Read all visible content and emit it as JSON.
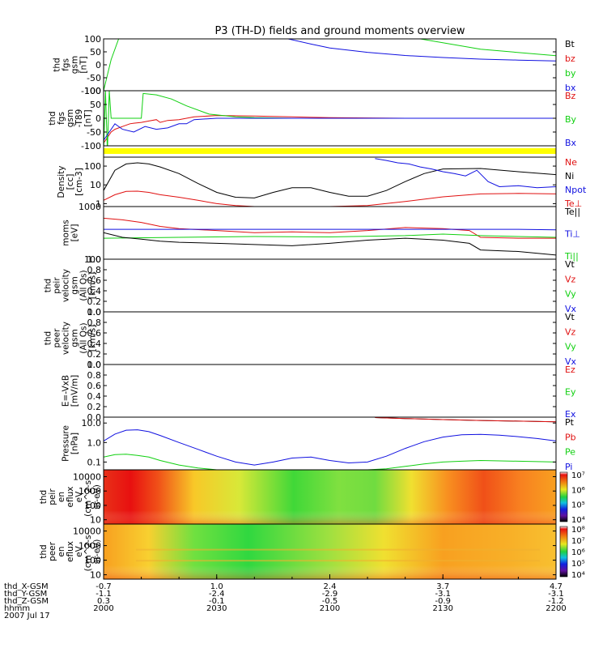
{
  "title": "P3 (TH-D) fields and ground moments overview",
  "chart_data": {
    "type": "line",
    "time_axis": {
      "rows": [
        {
          "label": "thd_X-GSM",
          "values": [
            "-0.7",
            "1.0",
            "2.4",
            "3.7",
            "4.7"
          ]
        },
        {
          "label": "thd_Y-GSM",
          "values": [
            "-1.1",
            "-2.4",
            "-2.9",
            "-3.1",
            "-3.1"
          ]
        },
        {
          "label": "thd_Z-GSM",
          "values": [
            "0.3",
            "-0.1",
            "-0.5",
            "-0.9",
            "-1.2"
          ]
        },
        {
          "label": "hhmm",
          "values": [
            "2000",
            "2030",
            "2100",
            "2130",
            "2200"
          ]
        }
      ],
      "date": "2007 Jul 17",
      "range_minutes": [
        0,
        120
      ]
    },
    "panels": [
      {
        "id": "fgs",
        "ylabel_lines": [
          "thd",
          "fgs",
          "gsm",
          "[nT]"
        ],
        "ylim": [
          -100,
          100
        ],
        "tick_labels": [
          "-100",
          "-50",
          "0",
          "50",
          "100"
        ],
        "legend": [
          {
            "label": "Bt",
            "color": "#000000"
          },
          {
            "label": "bz",
            "color": "#e01010"
          },
          {
            "label": "by",
            "color": "#10d010"
          },
          {
            "label": "bx",
            "color": "#1010e0"
          }
        ],
        "series": [
          {
            "name": "by",
            "t": [
              0,
              2,
              4,
              5,
              6,
              8,
              12,
              20,
              30,
              40,
              60,
              80,
              100,
              120
            ],
            "v": [
              -100,
              20,
              100,
              110,
              130,
              150,
              200,
              400,
              300,
              250,
              170,
              110,
              60,
              35
            ]
          },
          {
            "name": "bx",
            "t": [
              0,
              20,
              40,
              48,
              55,
              60,
              70,
              80,
              90,
              100,
              110,
              120
            ],
            "v": [
              400,
              250,
              150,
              103,
              80,
              65,
              48,
              36,
              28,
              22,
              18,
              15
            ]
          }
        ]
      },
      {
        "id": "fgs_t89",
        "ylabel_lines": [
          "thd",
          "fgs",
          "gsm",
          "-T89",
          "[nT]"
        ],
        "ylim": [
          -100,
          100
        ],
        "tick_labels": [
          "-100",
          "-50",
          "0",
          "50",
          "100"
        ],
        "legend": [
          {
            "label": "Bz",
            "color": "#e01010"
          },
          {
            "label": "By",
            "color": "#10d010"
          },
          {
            "label": "Bx",
            "color": "#1010e0"
          }
        ],
        "series": [
          {
            "name": "Bz",
            "t": [
              0,
              1,
              2,
              3,
              5,
              7,
              8,
              10,
              12,
              14,
              15,
              17,
              20,
              24,
              30,
              40,
              50,
              60,
              80,
              100,
              120
            ],
            "v": [
              -90,
              -70,
              -50,
              -40,
              -30,
              -20,
              -18,
              -15,
              -10,
              -5,
              -15,
              -8,
              -5,
              5,
              10,
              8,
              5,
              2,
              0,
              0,
              0
            ]
          },
          {
            "name": "By",
            "t": [
              0,
              0.5,
              1,
              1.5,
              2,
              10,
              10.5,
              14,
              18,
              22,
              28,
              35,
              40,
              50,
              60,
              80,
              100,
              120
            ],
            "v": [
              -120,
              100,
              -120,
              100,
              0,
              0,
              90,
              85,
              70,
              45,
              15,
              5,
              2,
              0,
              0,
              0,
              0,
              0
            ]
          },
          {
            "name": "Bx",
            "t": [
              0,
              3,
              5,
              8,
              11,
              14,
              17,
              20,
              22,
              24,
              30,
              40,
              60,
              80,
              100,
              120
            ],
            "v": [
              -80,
              -20,
              -40,
              -50,
              -30,
              -40,
              -35,
              -20,
              -20,
              -5,
              0,
              0,
              0,
              0,
              0,
              0
            ]
          }
        ]
      },
      {
        "id": "bar",
        "ylabel_lines": [],
        "color": "#ffff00"
      },
      {
        "id": "density",
        "ylabel_lines": [
          "Density",
          "[cc]",
          "[cm-3]"
        ],
        "ylim_log": [
          0.7,
          300
        ],
        "tick_labels": [
          "1",
          "10",
          "100"
        ],
        "tick_values": [
          1,
          10,
          100
        ],
        "legend": [
          {
            "label": "Ne",
            "color": "#e01010"
          },
          {
            "label": "Ni",
            "color": "#000000"
          },
          {
            "label": "Npot",
            "color": "#1010e0"
          },
          {
            "label": "Te⊥",
            "color": "#e01010"
          }
        ],
        "series": [
          {
            "name": "Ni",
            "t": [
              0,
              3,
              6,
              9,
              12,
              15,
              20,
              25,
              30,
              35,
              40,
              45,
              50,
              55,
              60,
              65,
              70,
              75,
              80,
              85,
              90,
              100,
              110,
              120
            ],
            "v": [
              5,
              60,
              130,
              150,
              130,
              90,
              40,
              12,
              4,
              2.2,
              2,
              4,
              7,
              7,
              4,
              2.5,
              2.5,
              5,
              15,
              40,
              70,
              75,
              50,
              35
            ]
          },
          {
            "name": "Ne",
            "t": [
              0,
              3,
              6,
              9,
              12,
              15,
              20,
              25,
              30,
              35,
              40,
              50,
              60,
              70,
              80,
              90,
              100,
              110,
              120
            ],
            "v": [
              1.5,
              3,
              4.5,
              4.6,
              4,
              3,
              2.2,
              1.5,
              1,
              0.8,
              0.7,
              0.7,
              0.7,
              0.8,
              1.3,
              2.3,
              3.3,
              3.5,
              3.3
            ]
          },
          {
            "name": "Npot",
            "t": [
              72,
              75,
              78,
              81,
              84,
              87,
              90,
              93,
              96,
              99,
              102,
              105,
              110,
              115,
              120
            ],
            "v": [
              250,
              200,
              150,
              130,
              90,
              70,
              50,
              40,
              30,
              60,
              15,
              8,
              9,
              7,
              8
            ]
          }
        ]
      },
      {
        "id": "moms",
        "ylabel_lines": [
          "moms",
          "[eV]"
        ],
        "ylim_log": [
          100,
          1000
        ],
        "tick_labels": [
          "100",
          "1000"
        ],
        "tick_values": [
          100,
          1000
        ],
        "legend": [
          {
            "label": "Te||",
            "color": "#000000"
          },
          {
            "label": "Ti⊥",
            "color": "#1010e0"
          },
          {
            "label": "Ti||",
            "color": "#10d010"
          }
        ],
        "series": [
          {
            "name": "Te",
            "t": [
              0,
              5,
              10,
              15,
              20,
              30,
              40,
              50,
              60,
              70,
              80,
              90,
              97,
              100,
              110,
              120
            ],
            "v": [
              600,
              560,
              500,
              420,
              380,
              350,
              320,
              330,
              320,
              350,
              400,
              380,
              350,
              260,
              250,
              250
            ]
          },
          {
            "name": "Ti⊥",
            "t": [
              0,
              20,
              40,
              60,
              80,
              90,
              100,
              110,
              120
            ],
            "v": [
              370,
              370,
              370,
              370,
              370,
              370,
              370,
              370,
              360
            ]
          },
          {
            "name": "Ti||",
            "t": [
              0,
              20,
              40,
              60,
              80,
              90,
              100,
              110,
              120
            ],
            "v": [
              250,
              260,
              270,
              265,
              280,
              300,
              280,
              270,
              260
            ]
          },
          {
            "name": "Ni",
            "t": [
              0,
              5,
              10,
              15,
              20,
              30,
              40,
              50,
              60,
              70,
              80,
              90,
              97,
              100,
              110,
              120
            ],
            "v": [
              320,
              260,
              240,
              220,
              210,
              200,
              190,
              180,
              200,
              230,
              250,
              230,
              200,
              150,
              140,
              120
            ]
          }
        ]
      },
      {
        "id": "peir_vel",
        "ylabel_lines": [
          "thd",
          "peir",
          "velocity",
          "gsm",
          "(All Qs)",
          "[km/s]"
        ],
        "ylim": [
          0,
          1
        ],
        "tick_labels": [
          "0.0",
          "0.2",
          "0.4",
          "0.6",
          "0.8",
          "1.0"
        ],
        "legend": [
          {
            "label": "Vt",
            "color": "#000000"
          },
          {
            "label": "Vz",
            "color": "#e01010"
          },
          {
            "label": "Vy",
            "color": "#10d010"
          },
          {
            "label": "Vx",
            "color": "#1010e0"
          }
        ],
        "series": []
      },
      {
        "id": "peer_vel",
        "ylabel_lines": [
          "thd",
          "peer",
          "velocity",
          "gsm",
          "(All Qs)",
          "[km/s]"
        ],
        "ylim": [
          0,
          1
        ],
        "tick_labels": [
          "0.0",
          "0.2",
          "0.4",
          "0.6",
          "0.8",
          "1.0"
        ],
        "legend": [
          {
            "label": "Vt",
            "color": "#000000"
          },
          {
            "label": "Vz",
            "color": "#e01010"
          },
          {
            "label": "Vy",
            "color": "#10d010"
          },
          {
            "label": "Vx",
            "color": "#1010e0"
          }
        ],
        "series": []
      },
      {
        "id": "efield",
        "ylabel_lines": [
          "E=-VxB",
          "[mV/m]"
        ],
        "ylim": [
          0,
          1
        ],
        "tick_labels": [
          "0.0",
          "0.2",
          "0.4",
          "0.6",
          "0.8",
          "1.0"
        ],
        "legend": [
          {
            "label": "Ez",
            "color": "#e01010"
          },
          {
            "label": "Ey",
            "color": "#10d010"
          },
          {
            "label": "Ex",
            "color": "#1010e0"
          }
        ],
        "series": []
      },
      {
        "id": "pressure",
        "ylabel_lines": [
          "Pressure",
          "[nPa]"
        ],
        "ylim_log": [
          0.04,
          20
        ],
        "tick_labels": [
          "0.1",
          "1.0",
          "10.0"
        ],
        "tick_values": [
          0.1,
          1,
          10
        ],
        "legend": [
          {
            "label": "Pt",
            "color": "#000000"
          },
          {
            "label": "Pb",
            "color": "#e01010"
          },
          {
            "label": "Pe",
            "color": "#10d010"
          },
          {
            "label": "Pi",
            "color": "#1010e0"
          }
        ],
        "series": [
          {
            "name": "Pi",
            "t": [
              0,
              3,
              6,
              9,
              12,
              15,
              20,
              25,
              30,
              35,
              40,
              45,
              50,
              55,
              60,
              65,
              70,
              75,
              80,
              85,
              90,
              95,
              100,
              105,
              110,
              115,
              120
            ],
            "v": [
              1.2,
              2.7,
              4.3,
              4.5,
              3.6,
              2.3,
              1.0,
              0.45,
              0.2,
              0.1,
              0.07,
              0.1,
              0.16,
              0.18,
              0.12,
              0.09,
              0.1,
              0.2,
              0.5,
              1.1,
              1.9,
              2.5,
              2.6,
              2.4,
              2.0,
              1.6,
              1.2
            ]
          },
          {
            "name": "Pe",
            "t": [
              0,
              3,
              6,
              9,
              12,
              15,
              20,
              25,
              30,
              40,
              50,
              60,
              70,
              75,
              80,
              85,
              90,
              95,
              100,
              110,
              120
            ],
            "v": [
              0.18,
              0.24,
              0.25,
              0.22,
              0.18,
              0.12,
              0.07,
              0.05,
              0.04,
              0.04,
              0.04,
              0.04,
              0.04,
              0.045,
              0.06,
              0.08,
              0.1,
              0.11,
              0.12,
              0.11,
              0.1
            ]
          },
          {
            "name": "Pt",
            "t": [
              72,
              80,
              90,
              100,
              110,
              120
            ],
            "v": [
              19,
              17,
              15,
              13.5,
              12.5,
              11.5
            ]
          },
          {
            "name": "Pb",
            "t": [
              72,
              80,
              90,
              100,
              110,
              120
            ],
            "v": [
              19,
              17,
              15,
              13.5,
              12.5,
              11.5
            ]
          }
        ]
      },
      {
        "id": "peir_eflux",
        "type": "heatmap",
        "ylabel_lines": [
          "thd",
          "peir",
          "en",
          "eflux",
          "eV",
          "(cm^2-s-",
          "sr-eV)"
        ],
        "ylim_log": [
          5,
          30000
        ],
        "tick_labels": [
          "10",
          "100",
          "1000",
          "10000"
        ],
        "tick_values": [
          10,
          100,
          1000,
          10000
        ],
        "colorbar_labels": [
          "10⁴",
          "10⁵",
          "10⁶",
          "10⁷"
        ]
      },
      {
        "id": "peer_eflux",
        "type": "heatmap",
        "ylabel_lines": [
          "thd",
          "peer",
          "en",
          "eflux",
          "eV",
          "(cm^2-s-",
          "sr-eV)"
        ],
        "ylim_log": [
          5,
          30000
        ],
        "tick_labels": [
          "10",
          "100",
          "1000",
          "10000"
        ],
        "tick_values": [
          10,
          100,
          1000,
          10000
        ],
        "colorbar_labels": [
          "10⁴",
          "10⁵",
          "10⁶",
          "10⁷",
          "10⁸"
        ]
      }
    ]
  }
}
